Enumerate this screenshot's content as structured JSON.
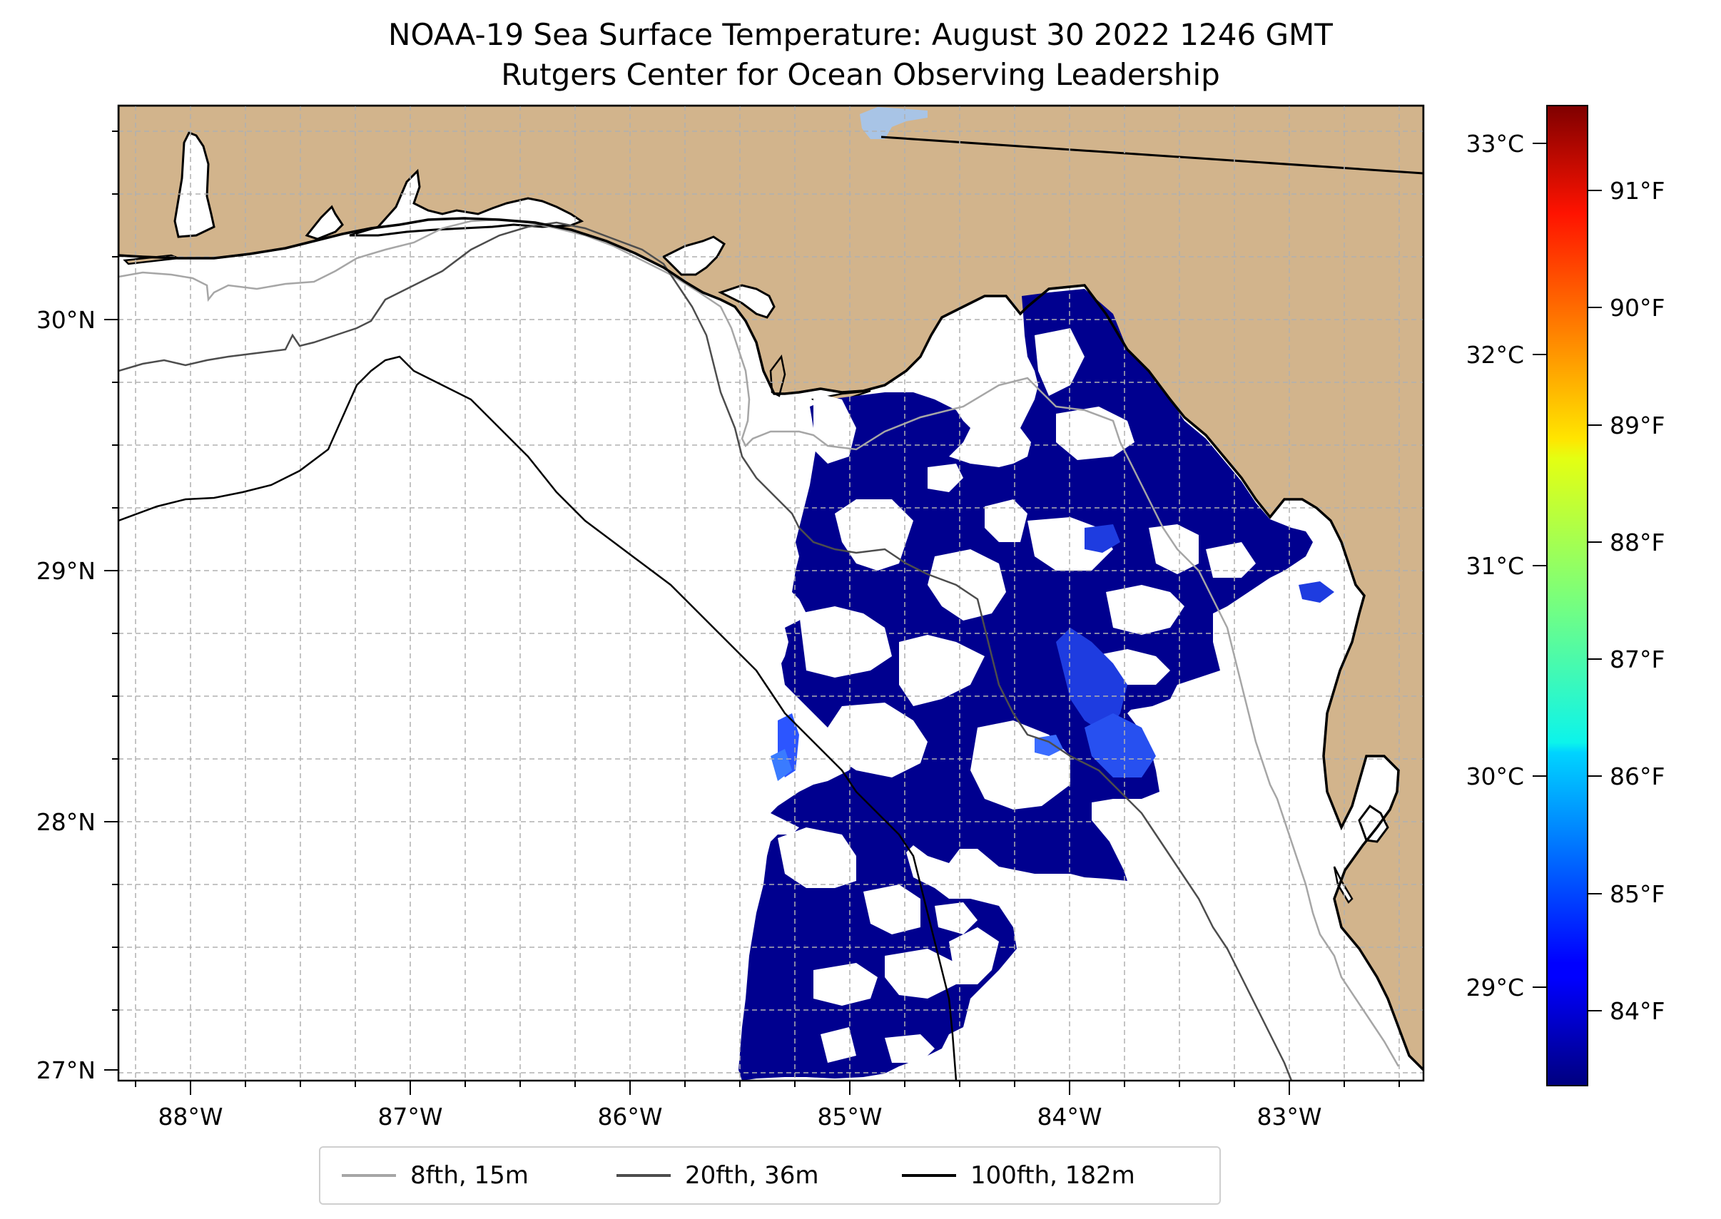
{
  "title": {
    "line1": "NOAA-19 Sea Surface Temperature: August 30 2022 1246 GMT",
    "line2": "Rutgers Center for Ocean Observing Leadership"
  },
  "axes": {
    "x_ticks": [
      "88°W",
      "87°W",
      "86°W",
      "85°W",
      "84°W",
      "83°W"
    ],
    "y_ticks": [
      "30°N",
      "29°N",
      "28°N",
      "27°N"
    ],
    "lon_range": [
      -88.33,
      -82.39
    ],
    "lat_range": [
      26.94,
      30.85
    ]
  },
  "colorbar": {
    "celsius_ticks": [
      "33°C",
      "32°C",
      "31°C",
      "30°C",
      "29°C"
    ],
    "fahrenheit_ticks": [
      "91°F",
      "90°F",
      "89°F",
      "88°F",
      "87°F",
      "86°F",
      "85°F",
      "84°F"
    ],
    "range_celsius": [
      28.5,
      33.2
    ],
    "colormap": "jet"
  },
  "legend": {
    "items": [
      {
        "label": "8fth, 15m",
        "color": "#a6a6a6"
      },
      {
        "label": "20fth, 36m",
        "color": "#4d4d4d"
      },
      {
        "label": "100fth, 182m",
        "color": "#000000"
      }
    ]
  },
  "colors": {
    "land": "#d2b48c",
    "sst_low": "#00008f",
    "lake": "#a8c4e6",
    "gridline": "#b0b0b0"
  }
}
